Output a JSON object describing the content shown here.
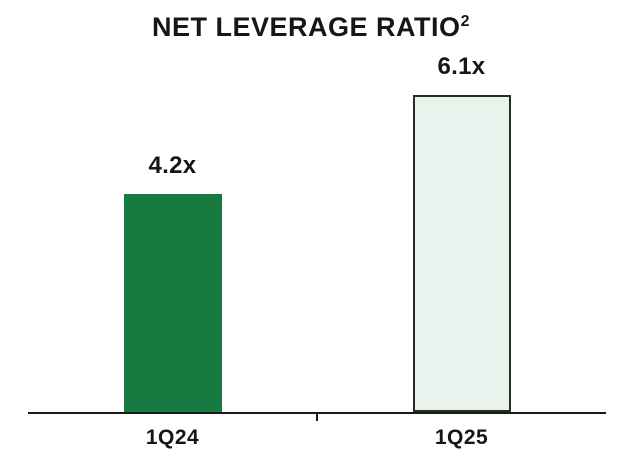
{
  "title": {
    "text": "NET LEVERAGE RATIO",
    "superscript": "2"
  },
  "chart_data": {
    "type": "bar",
    "title": "NET LEVERAGE RATIO (footnote 2)",
    "categories": [
      "1Q24",
      "1Q25"
    ],
    "values": [
      4.2,
      6.1
    ],
    "value_labels": [
      "4.2x",
      "6.1x"
    ],
    "xlabel": "",
    "ylabel": "",
    "ylim": [
      0,
      7
    ],
    "grid": false,
    "legend_position": "none",
    "bar_colors": [
      "#177b41",
      "#e9f2ec"
    ],
    "bar_border_colors": [
      "#177b41",
      "#22301f"
    ],
    "axis_color": "#1a1a1a",
    "background_color": "#ffffff"
  }
}
